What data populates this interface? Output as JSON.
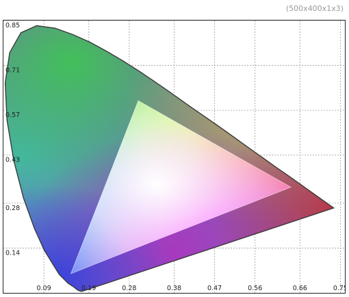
{
  "window": {
    "title": "(500x400x1x3)"
  },
  "chart_data": {
    "type": "scatter",
    "title": "",
    "xlabel": "",
    "ylabel": "",
    "grid": true,
    "x_ticks": [
      "0.09",
      "0.19",
      "0.28",
      "0.38",
      "0.47",
      "0.56",
      "0.66",
      "0.75"
    ],
    "y_ticks": [
      "0.85",
      "0.71",
      "0.57",
      "0.43",
      "0.28",
      "0.14"
    ],
    "xlim": [
      0.0,
      0.76
    ],
    "ylim": [
      0.0,
      0.85
    ],
    "series": [
      {
        "type": "line",
        "points": [
          [
            0.175,
            0.005
          ],
          [
            0.173,
            0.005
          ],
          [
            0.17,
            0.006
          ],
          [
            0.165,
            0.009
          ],
          [
            0.157,
            0.018
          ],
          [
            0.144,
            0.03
          ],
          [
            0.124,
            0.058
          ],
          [
            0.091,
            0.133
          ],
          [
            0.069,
            0.201
          ],
          [
            0.045,
            0.295
          ],
          [
            0.023,
            0.413
          ],
          [
            0.008,
            0.538
          ],
          [
            0.004,
            0.655
          ],
          [
            0.014,
            0.75
          ],
          [
            0.039,
            0.812
          ],
          [
            0.074,
            0.834
          ],
          [
            0.115,
            0.826
          ],
          [
            0.155,
            0.806
          ],
          [
            0.193,
            0.782
          ],
          [
            0.23,
            0.754
          ],
          [
            0.266,
            0.724
          ],
          [
            0.302,
            0.692
          ],
          [
            0.337,
            0.659
          ],
          [
            0.373,
            0.624
          ],
          [
            0.408,
            0.589
          ],
          [
            0.444,
            0.554
          ],
          [
            0.479,
            0.52
          ],
          [
            0.512,
            0.487
          ],
          [
            0.547,
            0.452
          ],
          [
            0.575,
            0.424
          ],
          [
            0.608,
            0.391
          ],
          [
            0.641,
            0.359
          ],
          [
            0.673,
            0.327
          ],
          [
            0.702,
            0.298
          ],
          [
            0.725,
            0.275
          ],
          [
            0.735,
            0.265
          ]
        ]
      },
      {
        "type": "triangle",
        "vertices": [
          [
            0.64,
            0.33
          ],
          [
            0.3,
            0.6
          ],
          [
            0.15,
            0.06
          ]
        ]
      }
    ]
  }
}
